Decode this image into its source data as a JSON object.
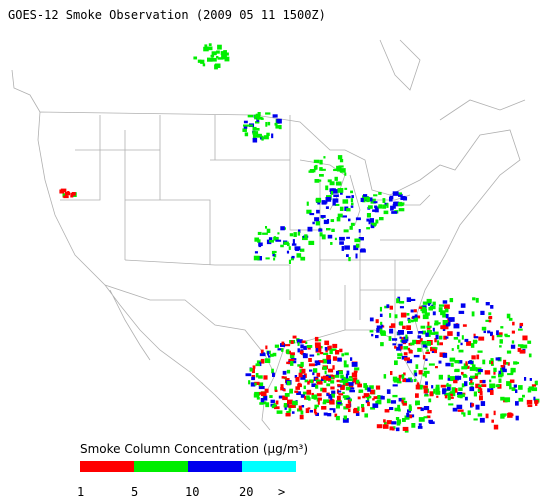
{
  "title": "GOES-12 Smoke Observation (2009 05 11  1500Z)",
  "legend": {
    "title": "Smoke Column Concentration (μg/m³)",
    "bins": [
      {
        "color": "#ff0000"
      },
      {
        "color": "#00ee00"
      },
      {
        "color": "#0000ee"
      },
      {
        "color": "#00ffff"
      }
    ],
    "labels": [
      "1",
      "5",
      "10",
      "20",
      ">"
    ]
  }
}
